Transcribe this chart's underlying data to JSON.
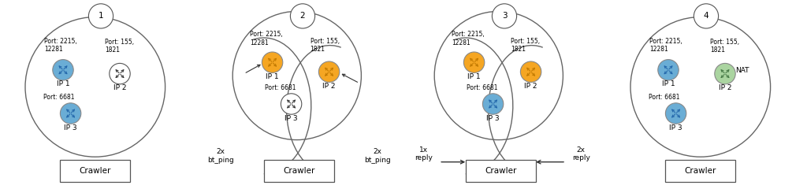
{
  "bg_color": "#ffffff",
  "node_colors": {
    "blue": "#6aadd5",
    "orange": "#f5a623",
    "white": "#ffffff",
    "green": "#aad4a0"
  },
  "labels": {
    "ip1": "IP 1",
    "ip2": "IP 2",
    "ip3": "IP 3",
    "nat": "NAT",
    "crawler": "Crawler",
    "port1": "Port: 2215,\n12281",
    "port2": "Port: 155,\n1821",
    "port3": "Port: 6681"
  },
  "step2_labels": [
    "2x\nbt_ping",
    "2x\nbt_ping"
  ],
  "step3_labels": [
    "1x\nreply",
    "2x\nreply"
  ],
  "font_size": 6.5,
  "small_font": 5.5
}
